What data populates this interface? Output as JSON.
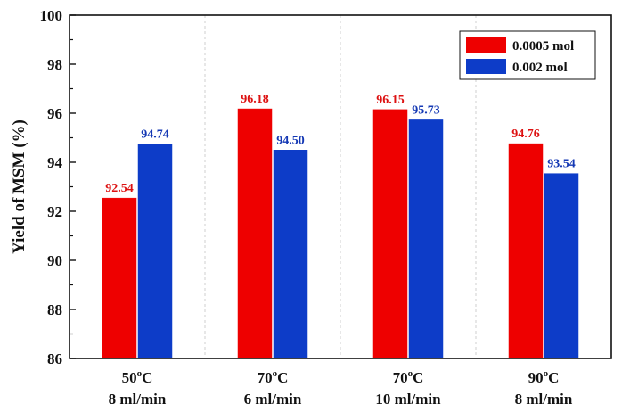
{
  "chart_data": {
    "type": "bar",
    "title": "",
    "xlabel": "",
    "ylabel": "Yield of MSM (%)",
    "ylim": [
      86,
      100
    ],
    "yticks": [
      "86",
      "88",
      "90",
      "92",
      "94",
      "96",
      "98",
      "100"
    ],
    "grid": "vertical-dashed",
    "legend_position": "top-right",
    "categories": [
      {
        "temp": "50",
        "flow": "8 ml/min"
      },
      {
        "temp": "70",
        "flow": "6 ml/min"
      },
      {
        "temp": "70",
        "flow": "10 ml/min"
      },
      {
        "temp": "90",
        "flow": "8 ml/min"
      }
    ],
    "series": [
      {
        "name": "0.0005 mol",
        "color": "#ee0000",
        "label_color": "#dd1111",
        "values": [
          92.54,
          96.18,
          96.15,
          94.76
        ],
        "labels": [
          "92.54",
          "96.18",
          "96.15",
          "94.76"
        ]
      },
      {
        "name": "0.002 mol",
        "color": "#0d3cc8",
        "label_color": "#1438b4",
        "values": [
          94.74,
          94.5,
          95.73,
          93.54
        ],
        "labels": [
          "94.74",
          "94.50",
          "95.73",
          "93.54"
        ]
      }
    ],
    "temp_unit_sup": "o",
    "temp_unit": "C"
  }
}
